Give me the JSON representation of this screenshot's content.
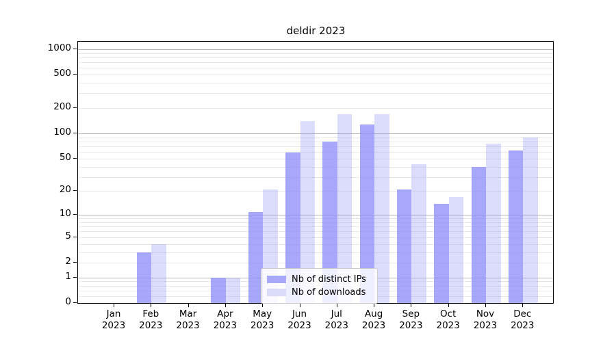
{
  "chart_data": {
    "type": "bar",
    "title": "deldir 2023",
    "categories": [
      "Jan\n2023",
      "Feb\n2023",
      "Mar\n2023",
      "Apr\n2023",
      "May\n2023",
      "Jun\n2023",
      "Jul\n2023",
      "Aug\n2023",
      "Sep\n2023",
      "Oct\n2023",
      "Nov\n2023",
      "Dec\n2023"
    ],
    "series": [
      {
        "name": "Nb of distinct IPs",
        "color": "rgba(138,138,250,0.75)",
        "solid_color": "#a9a9fb",
        "values": [
          0,
          3,
          0,
          1,
          11,
          59,
          80,
          127,
          21,
          14,
          40,
          62
        ]
      },
      {
        "name": "Nb of downloads",
        "color": "rgba(138,138,250,0.30)",
        "solid_color": "#dadaf9",
        "values": [
          0,
          4,
          0,
          1,
          21,
          140,
          170,
          170,
          43,
          17,
          75,
          90
        ]
      }
    ],
    "y_scale": "log1p",
    "y_ticks": [
      1000,
      500,
      200,
      100,
      50,
      20,
      10,
      5,
      2,
      1,
      0
    ],
    "ylim": [
      0,
      1000
    ],
    "xlabel": "",
    "ylabel": "",
    "grid": true,
    "legend_position": "lower-center",
    "colors": {
      "major_grid": "#b4b4b4",
      "minor_grid": "#e8e8e8",
      "axis": "#000000",
      "background": "#ffffff"
    }
  }
}
